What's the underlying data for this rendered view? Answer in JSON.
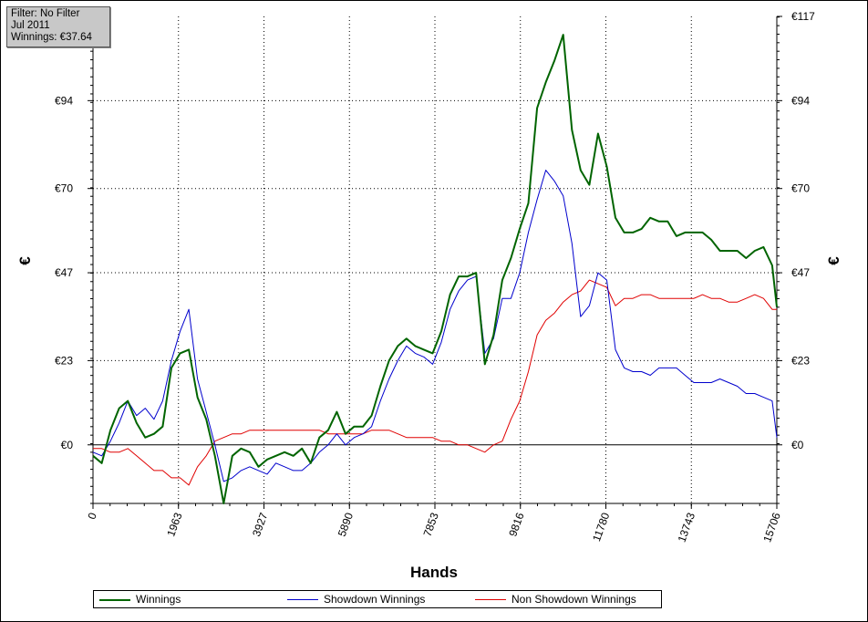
{
  "info": {
    "filter": "Filter: No Filter",
    "period": "Jul 2011",
    "winnings": "Winnings: €37.64"
  },
  "chart_data": {
    "type": "line",
    "xlabel": "Hands",
    "ylabel_left": "€",
    "ylabel_right": "€",
    "xlim": [
      0,
      15706
    ],
    "ylim": [
      -16,
      117
    ],
    "x_ticks": [
      0,
      1963,
      3927,
      5890,
      7853,
      9816,
      11780,
      13743,
      15706
    ],
    "x_tick_labels": [
      "0",
      "1963",
      "3927",
      "5890",
      "7853",
      "9816",
      "11780",
      "13743",
      "15706"
    ],
    "y_ticks": [
      0,
      23,
      47,
      70,
      94,
      117
    ],
    "y_tick_labels": [
      "€0",
      "€23",
      "€47",
      "€70",
      "€94",
      "€117"
    ],
    "grid": true,
    "legend_position": "bottom",
    "series": [
      {
        "name": "Winnings",
        "color": "#006400",
        "x": [
          0,
          200,
          400,
          600,
          800,
          1000,
          1200,
          1400,
          1600,
          1800,
          2000,
          2200,
          2400,
          2600,
          2800,
          3000,
          3200,
          3400,
          3600,
          3800,
          4000,
          4200,
          4400,
          4600,
          4800,
          5000,
          5200,
          5400,
          5600,
          5800,
          6000,
          6200,
          6400,
          6600,
          6800,
          7000,
          7200,
          7400,
          7600,
          7800,
          8000,
          8200,
          8400,
          8600,
          8800,
          9000,
          9200,
          9400,
          9600,
          9800,
          10000,
          10200,
          10400,
          10600,
          10800,
          11000,
          11200,
          11400,
          11600,
          11800,
          12000,
          12200,
          12400,
          12600,
          12800,
          13000,
          13200,
          13400,
          13600,
          13800,
          14000,
          14200,
          14400,
          14600,
          14800,
          15000,
          15200,
          15400,
          15600,
          15706
        ],
        "values": [
          -3,
          -5,
          4,
          10,
          12,
          6,
          2,
          3,
          5,
          21,
          25,
          26,
          13,
          7,
          -3,
          -16,
          -3,
          -1,
          -2,
          -6,
          -4,
          -3,
          -2,
          -3,
          -1,
          -5,
          2,
          4,
          9,
          3,
          5,
          5,
          8,
          16,
          23,
          27,
          29,
          27,
          26,
          25,
          31,
          41,
          46,
          46,
          47,
          22,
          30,
          45,
          51,
          59,
          66,
          92,
          99,
          105,
          112,
          86,
          75,
          71,
          85,
          76,
          62,
          58,
          58,
          59,
          62,
          61,
          61,
          57,
          58,
          58,
          58,
          56,
          53,
          53,
          53,
          51,
          53,
          54,
          49,
          37.64
        ]
      },
      {
        "name": "Showdown Winnings",
        "color": "#0000CD",
        "x": [
          0,
          200,
          400,
          600,
          800,
          1000,
          1200,
          1400,
          1600,
          1800,
          2000,
          2200,
          2400,
          2600,
          2800,
          3000,
          3200,
          3400,
          3600,
          3800,
          4000,
          4200,
          4400,
          4600,
          4800,
          5000,
          5200,
          5400,
          5600,
          5800,
          6000,
          6200,
          6400,
          6600,
          6800,
          7000,
          7200,
          7400,
          7600,
          7800,
          8000,
          8200,
          8400,
          8600,
          8800,
          9000,
          9200,
          9400,
          9600,
          9800,
          10000,
          10200,
          10400,
          10600,
          10800,
          11000,
          11200,
          11400,
          11600,
          11800,
          12000,
          12200,
          12400,
          12600,
          12800,
          13000,
          13200,
          13400,
          13600,
          13800,
          14000,
          14200,
          14400,
          14600,
          14800,
          15000,
          15200,
          15400,
          15600,
          15706
        ],
        "values": [
          -2,
          -3,
          1,
          6,
          12,
          8,
          10,
          7,
          12,
          23,
          31,
          37,
          18,
          9,
          0,
          -10,
          -9,
          -7,
          -6,
          -7,
          -8,
          -5,
          -6,
          -7,
          -7,
          -5,
          -2,
          0,
          3,
          0,
          2,
          3,
          5,
          12,
          18,
          23,
          27,
          25,
          24,
          22,
          28,
          37,
          42,
          45,
          46,
          25,
          29,
          40,
          40,
          47,
          58,
          67,
          75,
          72,
          68,
          55,
          35,
          38,
          47,
          45,
          26,
          21,
          20,
          20,
          19,
          21,
          21,
          21,
          19,
          17,
          17,
          17,
          18,
          17,
          16,
          14,
          14,
          13,
          12,
          2
        ]
      },
      {
        "name": "Non Showdown Winnings",
        "color": "#E00000",
        "x": [
          0,
          200,
          400,
          600,
          800,
          1000,
          1200,
          1400,
          1600,
          1800,
          2000,
          2200,
          2400,
          2600,
          2800,
          3000,
          3200,
          3400,
          3600,
          3800,
          4000,
          4200,
          4400,
          4600,
          4800,
          5000,
          5200,
          5400,
          5600,
          5800,
          6000,
          6200,
          6400,
          6600,
          6800,
          7000,
          7200,
          7400,
          7600,
          7800,
          8000,
          8200,
          8400,
          8600,
          8800,
          9000,
          9200,
          9400,
          9600,
          9800,
          10000,
          10200,
          10400,
          10600,
          10800,
          11000,
          11200,
          11400,
          11600,
          11800,
          12000,
          12200,
          12400,
          12600,
          12800,
          13000,
          13200,
          13400,
          13600,
          13800,
          14000,
          14200,
          14400,
          14600,
          14800,
          15000,
          15200,
          15400,
          15600,
          15706
        ],
        "values": [
          -1,
          -1,
          -2,
          -2,
          -1,
          -3,
          -5,
          -7,
          -7,
          -9,
          -9,
          -11,
          -6,
          -3,
          1,
          2,
          3,
          3,
          4,
          4,
          4,
          4,
          4,
          4,
          4,
          4,
          4,
          3,
          3,
          3,
          3,
          3,
          4,
          4,
          4,
          3,
          2,
          2,
          2,
          2,
          1,
          1,
          0,
          0,
          -1,
          -2,
          0,
          1,
          7,
          12,
          20,
          30,
          34,
          36,
          39,
          41,
          42,
          45,
          44,
          43,
          38,
          40,
          40,
          41,
          41,
          40,
          40,
          40,
          40,
          40,
          41,
          40,
          40,
          39,
          39,
          40,
          41,
          40,
          37,
          37
        ]
      }
    ]
  }
}
